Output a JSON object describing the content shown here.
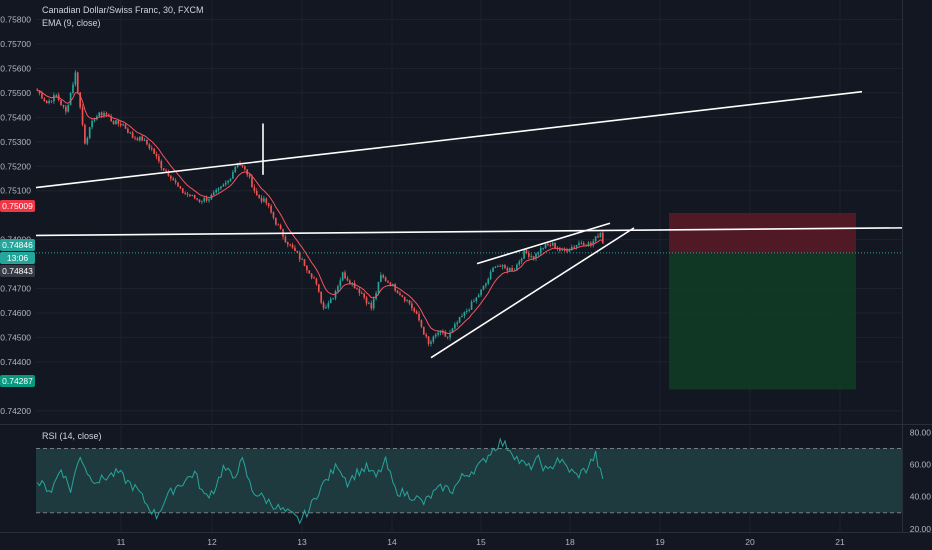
{
  "header": {
    "symbol": "Canadian Dollar/Swiss Franc, 30, FXCM",
    "ema_label": "EMA (9, close)",
    "rsi_label": "RSI (14, close)"
  },
  "colors": {
    "background": "#131722",
    "grid": "#1e222d",
    "up": "#26a69a",
    "down": "#ef5350",
    "ema": "#f7525f",
    "trendline": "#ffffff",
    "rsi_line": "#26a69a",
    "rsi_band": "#1f3a3f",
    "stop_zone": "#5c1a26",
    "target_zone": "#0f3d24",
    "current_price_line": "#26a69a"
  },
  "price_badges": [
    {
      "id": "stop",
      "label": "0.75009",
      "color": "#f23645"
    },
    {
      "id": "last",
      "label": "0.74846",
      "color": "#26a69a"
    },
    {
      "id": "timer",
      "label": "13:06",
      "color": "#26a69a"
    },
    {
      "id": "entry",
      "label": "0.74843",
      "color": "#363a45"
    },
    {
      "id": "target",
      "label": "0.74287",
      "color": "#089981"
    }
  ],
  "chart_data": [
    {
      "type": "candlestick",
      "title": "Canadian Dollar/Swiss Franc, 30, FXCM",
      "x_ticks": [
        "11",
        "12",
        "13",
        "14",
        "15",
        "18",
        "19",
        "20",
        "21"
      ],
      "y_ticks": [
        "0.75800",
        "0.75700",
        "0.75600",
        "0.75500",
        "0.75400",
        "0.75300",
        "0.75200",
        "0.75100",
        "0.74900",
        "0.74700",
        "0.74600",
        "0.74500",
        "0.74400",
        "0.74200"
      ],
      "ylim": [
        0.7415,
        0.7588
      ],
      "path": [
        [
          0,
          0.7551
        ],
        [
          4,
          0.7546
        ],
        [
          8,
          0.7549
        ],
        [
          12,
          0.7542
        ],
        [
          16,
          0.7558
        ],
        [
          20,
          0.753
        ],
        [
          24,
          0.754
        ],
        [
          28,
          0.7542
        ],
        [
          32,
          0.7538
        ],
        [
          36,
          0.7537
        ],
        [
          40,
          0.7532
        ],
        [
          44,
          0.7531
        ],
        [
          48,
          0.7527
        ],
        [
          52,
          0.752
        ],
        [
          56,
          0.7516
        ],
        [
          60,
          0.751
        ],
        [
          64,
          0.7508
        ],
        [
          68,
          0.7506
        ],
        [
          72,
          0.7507
        ],
        [
          76,
          0.751
        ],
        [
          80,
          0.7514
        ],
        [
          84,
          0.7522
        ],
        [
          88,
          0.7517
        ],
        [
          92,
          0.7508
        ],
        [
          96,
          0.7505
        ],
        [
          100,
          0.7497
        ],
        [
          104,
          0.749
        ],
        [
          108,
          0.7485
        ],
        [
          112,
          0.748
        ],
        [
          116,
          0.7474
        ],
        [
          120,
          0.7462
        ],
        [
          124,
          0.7467
        ],
        [
          128,
          0.7476
        ],
        [
          132,
          0.7472
        ],
        [
          136,
          0.7468
        ],
        [
          140,
          0.7462
        ],
        [
          144,
          0.7475
        ],
        [
          148,
          0.7472
        ],
        [
          152,
          0.7468
        ],
        [
          156,
          0.7464
        ],
        [
          160,
          0.7457
        ],
        [
          164,
          0.7447
        ],
        [
          168,
          0.7452
        ],
        [
          172,
          0.745
        ],
        [
          176,
          0.7456
        ],
        [
          180,
          0.7461
        ],
        [
          184,
          0.7466
        ],
        [
          188,
          0.7472
        ],
        [
          192,
          0.748
        ],
        [
          196,
          0.7478
        ],
        [
          200,
          0.7478
        ],
        [
          204,
          0.7485
        ],
        [
          208,
          0.7483
        ],
        [
          212,
          0.7487
        ],
        [
          216,
          0.7488
        ],
        [
          220,
          0.7485
        ],
        [
          224,
          0.7487
        ],
        [
          228,
          0.7489
        ],
        [
          232,
          0.7488
        ],
        [
          236,
          0.7493
        ],
        [
          238,
          0.7485
        ]
      ],
      "candle_count": 238,
      "ema_period": 9
    },
    {
      "type": "line",
      "title": "RSI (14, close)",
      "y_ticks": [
        "80.00",
        "60.00",
        "40.00",
        "20.00"
      ],
      "ylim": [
        18,
        84
      ],
      "band": [
        30,
        70
      ],
      "path": [
        [
          0,
          49
        ],
        [
          6,
          44
        ],
        [
          10,
          58
        ],
        [
          14,
          44
        ],
        [
          18,
          66
        ],
        [
          22,
          52
        ],
        [
          26,
          50
        ],
        [
          30,
          53
        ],
        [
          34,
          55
        ],
        [
          38,
          49
        ],
        [
          42,
          44
        ],
        [
          46,
          35
        ],
        [
          50,
          28
        ],
        [
          54,
          39
        ],
        [
          58,
          46
        ],
        [
          62,
          50
        ],
        [
          66,
          55
        ],
        [
          70,
          40
        ],
        [
          74,
          44
        ],
        [
          78,
          58
        ],
        [
          82,
          52
        ],
        [
          86,
          62
        ],
        [
          90,
          44
        ],
        [
          94,
          40
        ],
        [
          98,
          36
        ],
        [
          102,
          32
        ],
        [
          106,
          29
        ],
        [
          110,
          25
        ],
        [
          114,
          32
        ],
        [
          118,
          44
        ],
        [
          122,
          52
        ],
        [
          126,
          60
        ],
        [
          130,
          49
        ],
        [
          134,
          55
        ],
        [
          138,
          58
        ],
        [
          142,
          52
        ],
        [
          146,
          62
        ],
        [
          150,
          44
        ],
        [
          154,
          42
        ],
        [
          158,
          40
        ],
        [
          162,
          36
        ],
        [
          166,
          42
        ],
        [
          170,
          46
        ],
        [
          174,
          44
        ],
        [
          178,
          52
        ],
        [
          182,
          56
        ],
        [
          186,
          60
        ],
        [
          190,
          68
        ],
        [
          194,
          74
        ],
        [
          198,
          70
        ],
        [
          202,
          62
        ],
        [
          206,
          58
        ],
        [
          210,
          63
        ],
        [
          214,
          55
        ],
        [
          218,
          64
        ],
        [
          222,
          58
        ],
        [
          226,
          53
        ],
        [
          230,
          57
        ],
        [
          234,
          66
        ],
        [
          238,
          44
        ]
      ]
    }
  ]
}
